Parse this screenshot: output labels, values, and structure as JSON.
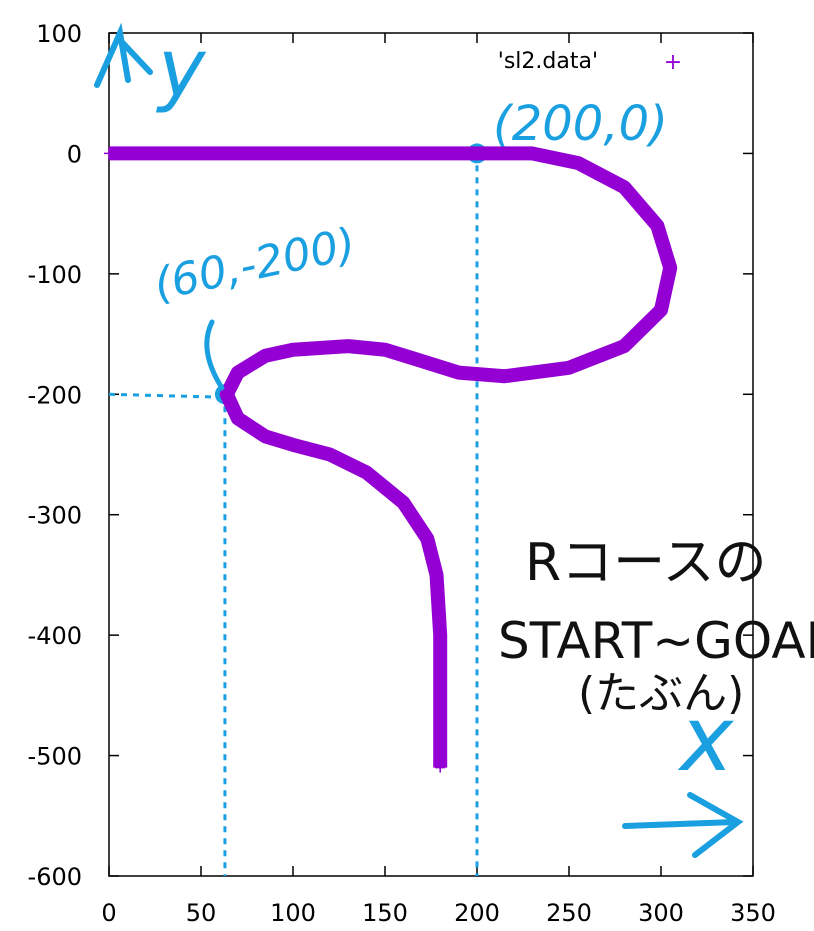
{
  "chart_data": {
    "type": "scatter",
    "title": "",
    "xlabel": "",
    "ylabel": "",
    "xlim": [
      0,
      350
    ],
    "ylim": [
      -600,
      100
    ],
    "xticks": [
      0,
      50,
      100,
      150,
      200,
      250,
      300,
      350
    ],
    "yticks": [
      100,
      0,
      -100,
      -200,
      -300,
      -400,
      -500,
      -600
    ],
    "legend_position": "top-right",
    "grid": false,
    "series": [
      {
        "name": "'sl2.data'",
        "color": "#9400d3",
        "marker": "+",
        "points": [
          [
            0,
            0
          ],
          [
            50,
            0
          ],
          [
            100,
            0
          ],
          [
            150,
            0
          ],
          [
            200,
            0
          ],
          [
            230,
            0
          ],
          [
            255,
            -8
          ],
          [
            280,
            -28
          ],
          [
            298,
            -60
          ],
          [
            305,
            -95
          ],
          [
            300,
            -130
          ],
          [
            280,
            -160
          ],
          [
            250,
            -178
          ],
          [
            215,
            -185
          ],
          [
            190,
            -182
          ],
          [
            165,
            -170
          ],
          [
            150,
            -163
          ],
          [
            130,
            -160
          ],
          [
            100,
            -163
          ],
          [
            85,
            -168
          ],
          [
            70,
            -182
          ],
          [
            64,
            -200
          ],
          [
            70,
            -220
          ],
          [
            85,
            -235
          ],
          [
            100,
            -242
          ],
          [
            120,
            -250
          ],
          [
            140,
            -265
          ],
          [
            160,
            -290
          ],
          [
            173,
            -320
          ],
          [
            178,
            -350
          ],
          [
            180,
            -400
          ],
          [
            180,
            -450
          ],
          [
            180,
            -510
          ]
        ]
      }
    ],
    "annotations": [
      {
        "text": "(200,0)",
        "x": 200,
        "y": 0
      },
      {
        "text": "(60,-200)",
        "x": 63,
        "y": -200
      },
      {
        "text": "x"
      },
      {
        "text": "y"
      },
      {
        "text": "Rコースの"
      },
      {
        "text": "START~GOAL"
      },
      {
        "text": "(たぶん)"
      }
    ]
  }
}
